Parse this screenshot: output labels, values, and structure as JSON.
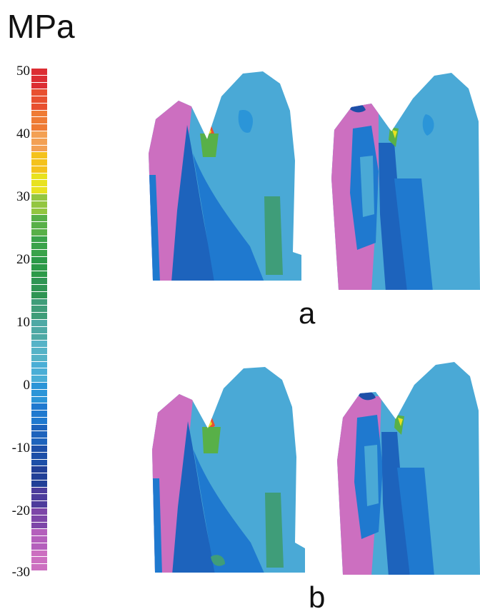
{
  "colorbar": {
    "unit": "MPa",
    "ticks": [
      "50",
      "40",
      "30",
      "20",
      "10",
      "0",
      "-10",
      "-20",
      "-30"
    ],
    "min": -30,
    "max": 50,
    "colors_low_to_high": [
      "#cc6fc0",
      "#b45fbc",
      "#7d46a8",
      "#4d3c9c",
      "#213f97",
      "#1d4fa8",
      "#1d63bc",
      "#1f79cf",
      "#2b95d8",
      "#4aaed6",
      "#55b3c7",
      "#4ea9a5",
      "#3f9d79",
      "#2f9553",
      "#2c9a48",
      "#3aa34a",
      "#58b048",
      "#93c640",
      "#e8e21f",
      "#f4c21c",
      "#f3a053",
      "#ef7b34",
      "#e85030",
      "#dc2d33"
    ]
  },
  "panels": [
    {
      "label": "a"
    },
    {
      "label": "b"
    }
  ]
}
